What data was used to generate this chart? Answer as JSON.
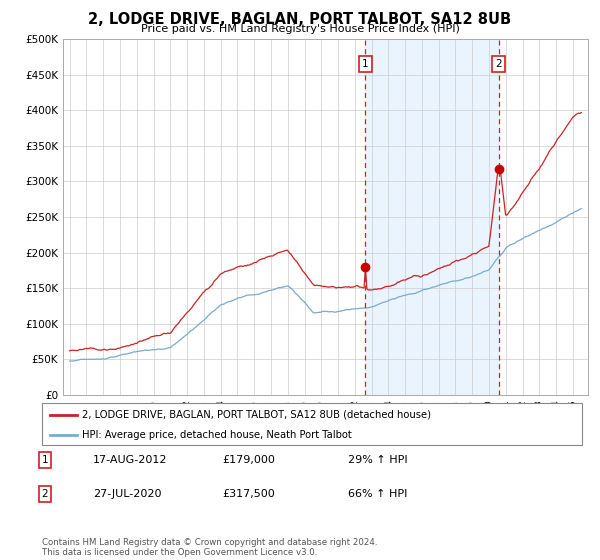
{
  "title": "2, LODGE DRIVE, BAGLAN, PORT TALBOT, SA12 8UB",
  "subtitle": "Price paid vs. HM Land Registry's House Price Index (HPI)",
  "legend_line1": "2, LODGE DRIVE, BAGLAN, PORT TALBOT, SA12 8UB (detached house)",
  "legend_line2": "HPI: Average price, detached house, Neath Port Talbot",
  "annotation1_label": "1",
  "annotation1_date": "17-AUG-2012",
  "annotation1_price": "£179,000",
  "annotation1_pct": "29% ↑ HPI",
  "annotation2_label": "2",
  "annotation2_date": "27-JUL-2020",
  "annotation2_price": "£317,500",
  "annotation2_pct": "66% ↑ HPI",
  "footer": "Contains HM Land Registry data © Crown copyright and database right 2024.\nThis data is licensed under the Open Government Licence v3.0.",
  "hpi_color": "#7aabcc",
  "price_color": "#cc2222",
  "dot_color": "#cc0000",
  "bg_shaded": "#ddeeff",
  "vline_color": "#cc2222",
  "ylim": [
    0,
    500000
  ],
  "yticks": [
    0,
    50000,
    100000,
    150000,
    200000,
    250000,
    300000,
    350000,
    400000,
    450000,
    500000
  ],
  "sale1_year": 2012.625,
  "sale2_year": 2020.573,
  "xstart": 1995,
  "xend": 2025
}
